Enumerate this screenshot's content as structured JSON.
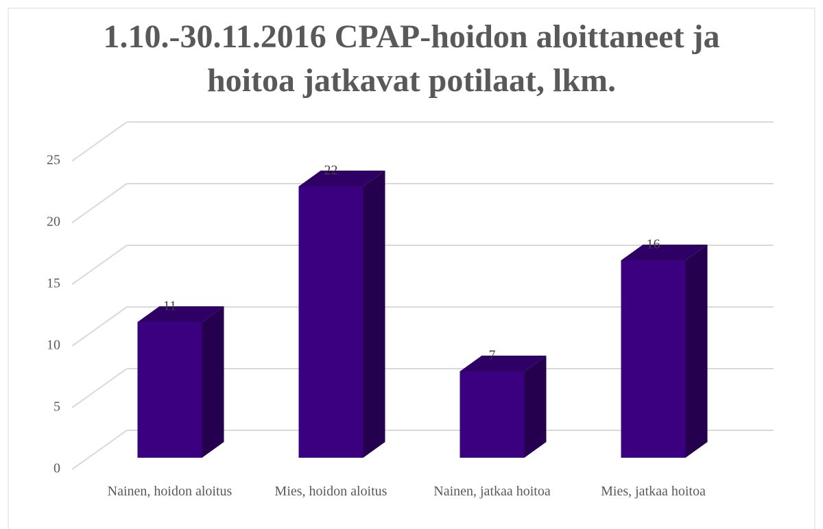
{
  "chart_data": {
    "type": "bar3d",
    "title": "1.10.-30.11.2016 CPAP-hoidon aloittaneet ja hoitoa jatkavat potilaat, lkm.",
    "categories": [
      "Nainen, hoidon aloitus",
      "Mies, hoidon aloitus",
      "Nainen, jatkaa hoitoa",
      "Mies, jatkaa hoitoa"
    ],
    "values": [
      11,
      22,
      7,
      16
    ],
    "color": "#3a0080",
    "ylim": [
      0,
      25
    ],
    "yticks": [
      0,
      5,
      10,
      15,
      20,
      25
    ],
    "grid": true
  }
}
